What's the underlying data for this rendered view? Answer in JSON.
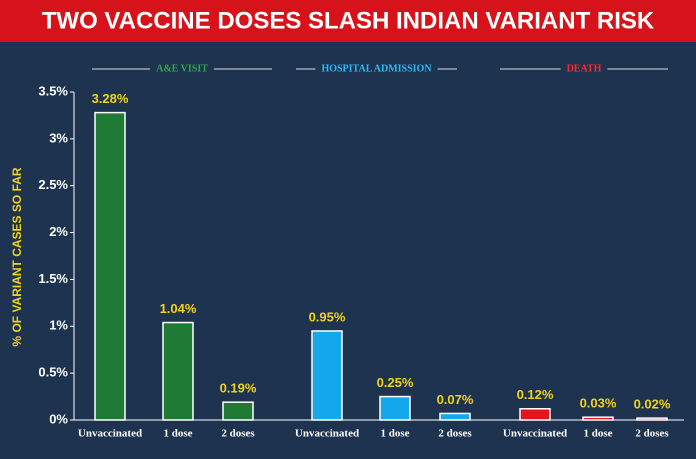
{
  "chart_data": {
    "type": "bar",
    "title": "TWO VACCINE DOSES SLASH INDIAN VARIANT RISK",
    "y_label": "% OF VARIANT CASES SO FAR",
    "categories": [
      "Unvaccinated",
      "1 dose",
      "2 doses",
      "Unvaccinated",
      "1 dose",
      "2 doses",
      "Unvaccinated",
      "1 dose",
      "2 doses"
    ],
    "series": [
      {
        "name": "A&E VISIT",
        "color": "#1f7a35",
        "values": [
          3.28,
          1.04,
          0.19,
          null,
          null,
          null,
          null,
          null,
          null
        ],
        "value_labels": [
          "3.28%",
          "1.04%",
          "0.19%",
          null,
          null,
          null,
          null,
          null,
          null
        ]
      },
      {
        "name": "HOSPITAL ADMISSION",
        "color": "#13a8ec",
        "values": [
          null,
          null,
          null,
          0.95,
          0.25,
          0.07,
          null,
          null,
          null
        ],
        "value_labels": [
          null,
          null,
          null,
          "0.95%",
          "0.25%",
          "0.07%",
          null,
          null,
          null
        ]
      },
      {
        "name": "DEATH",
        "color": "#e3141c",
        "values": [
          null,
          null,
          null,
          null,
          null,
          null,
          0.12,
          0.03,
          0.02
        ],
        "value_labels": [
          null,
          null,
          null,
          null,
          null,
          null,
          "0.12%",
          "0.03%",
          "0.02%"
        ]
      }
    ],
    "ylim": [
      0,
      3.5
    ],
    "yticks": [
      {
        "value": 0,
        "label": "0%"
      },
      {
        "value": 0.5,
        "label": "0.5%"
      },
      {
        "value": 1,
        "label": "1%"
      },
      {
        "value": 1.5,
        "label": "1.5%"
      },
      {
        "value": 2,
        "label": "2%"
      },
      {
        "value": 2.5,
        "label": "2.5%"
      },
      {
        "value": 3,
        "label": "3%"
      },
      {
        "value": 3.5,
        "label": "3.5%"
      }
    ]
  }
}
